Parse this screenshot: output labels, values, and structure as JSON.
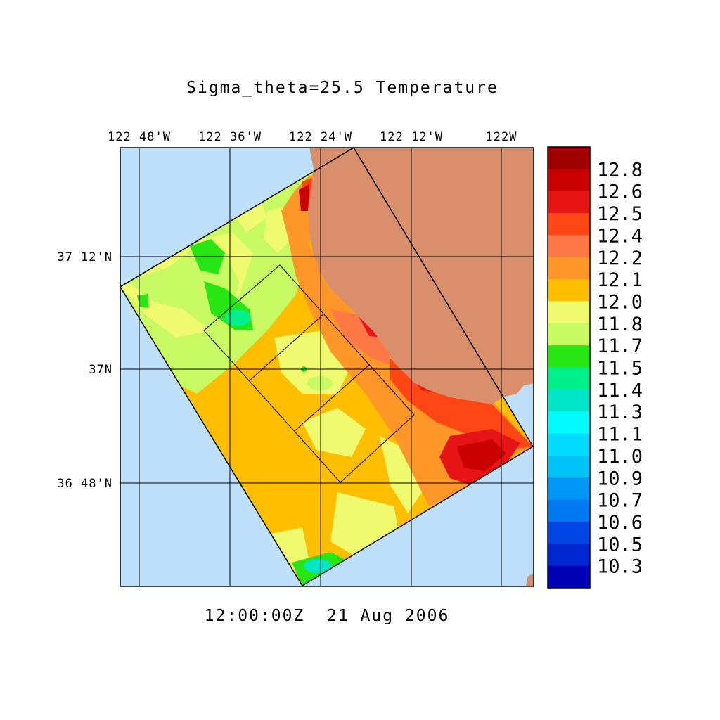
{
  "title": "Sigma_theta=25.5 Temperature",
  "timestamp": "12:00:00Z  21 Aug 2006",
  "longitude_ticks": [
    "122 48'W",
    "122 36'W",
    "122 24'W",
    "122 12'W",
    "122W"
  ],
  "latitude_ticks": [
    "37 12'N",
    "37N",
    "36 48'N"
  ],
  "colors": {
    "ocean": "#bfe0fb",
    "land": "#d98f6c",
    "frame": "#000000"
  },
  "colorbar": {
    "labels": [
      "12.8",
      "12.6",
      "12.5",
      "12.4",
      "12.2",
      "12.1",
      "12.0",
      "11.8",
      "11.7",
      "11.5",
      "11.4",
      "11.3",
      "11.1",
      "11.0",
      "10.9",
      "10.7",
      "10.6",
      "10.5",
      "10.3"
    ],
    "colors": [
      "#a00000",
      "#c80000",
      "#e61414",
      "#ff4614",
      "#ff7846",
      "#ff9628",
      "#ffbe00",
      "#f0fa6e",
      "#c8fa64",
      "#28e614",
      "#00f08c",
      "#00e6c8",
      "#00faff",
      "#00dcff",
      "#00c3f5",
      "#0096f5",
      "#0078f0",
      "#0046e6",
      "#0028d2",
      "#0000b4"
    ]
  }
}
